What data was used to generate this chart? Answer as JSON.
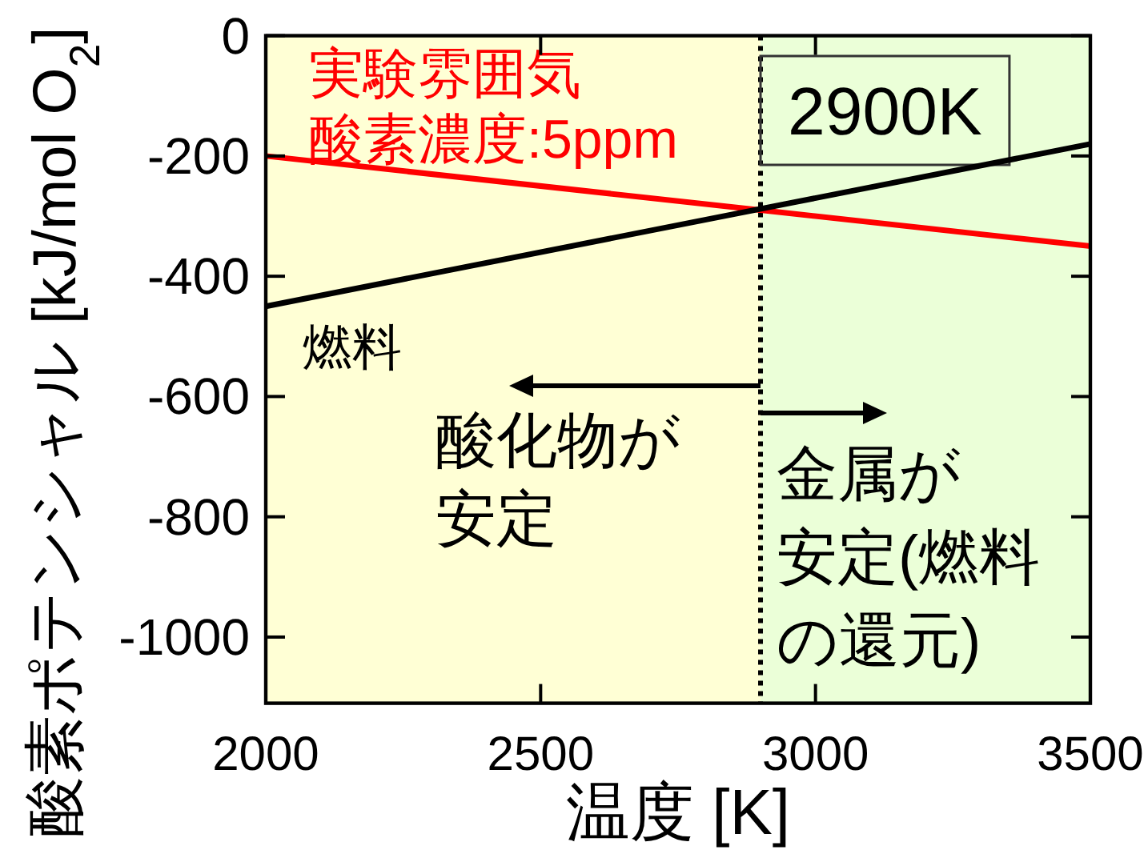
{
  "chart_data": {
    "type": "line",
    "xlabel": "温度 [K]",
    "ylabel": "酸素ポテンシャル [kJ/mol O$_{2}$]",
    "x": [
      2000,
      3500
    ],
    "series": [
      {
        "name": "実験雰囲気酸素濃度:5ppm",
        "color": "#ff0000",
        "values": [
          -200,
          -350
        ]
      },
      {
        "name": "燃料",
        "color": "#000000",
        "values": [
          -450,
          -180
        ]
      }
    ],
    "xlim": [
      2000,
      3500
    ],
    "ylim": [
      -1110,
      0
    ],
    "xticks": [
      2000,
      2500,
      3000,
      3500
    ],
    "yticks": [
      0,
      -200,
      -400,
      -600,
      -800,
      -1000
    ],
    "ref_lines": [
      {
        "axis": "x",
        "value": 2900,
        "label": "2900K",
        "line_style": "dotted",
        "color": "#000000"
      }
    ],
    "bands": [
      {
        "axis": "x",
        "from": 2000,
        "to": 2900,
        "label": "酸化物が安定",
        "color": "#ffffd5"
      },
      {
        "axis": "x",
        "from": 2900,
        "to": 3500,
        "label": "金属が安定(燃料の還元)",
        "color": "#ebffd8"
      }
    ]
  }
}
